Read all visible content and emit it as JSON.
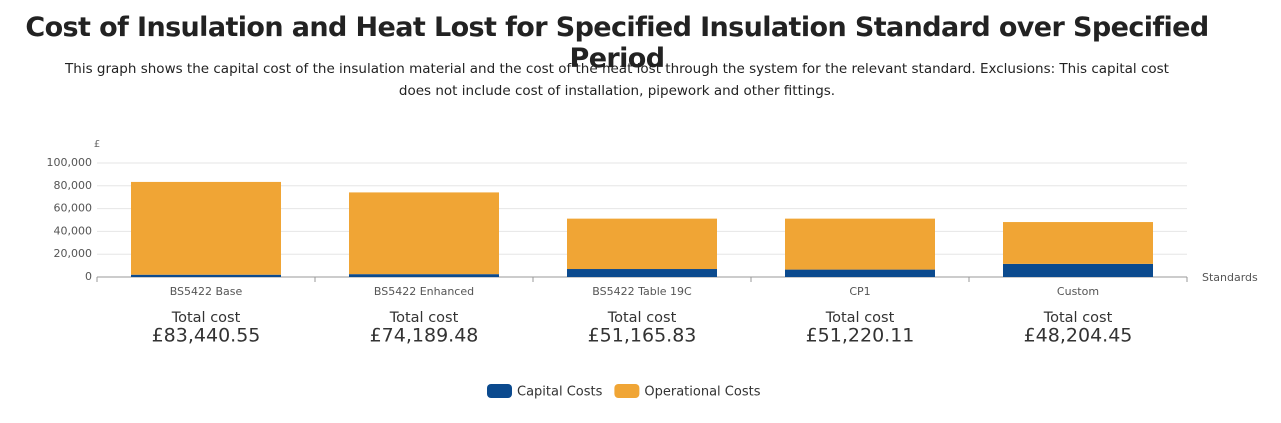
{
  "chart_data": {
    "type": "stacked_bar",
    "title": "Cost of Insulation and Heat Lost for Specified Insulation Standard over Specified Period",
    "subtitle": "This graph shows the capital cost of the insulation material and the cost of the heat lost through the system for the relevant standard. Exclusions: This capital cost does not include cost of installation, pipework and other fittings.",
    "y_label": "£",
    "x_label": "Standards",
    "categories": [
      "BS5422 Base",
      "BS5422 Enhanced",
      "BS5422 Table 19C",
      "CP1",
      "Custom"
    ],
    "series": [
      {
        "name": "Capital Costs",
        "color": "#0b4a8e",
        "values": [
          2000,
          2500,
          7000,
          6500,
          11500
        ]
      },
      {
        "name": "Operational Costs",
        "color": "#f0a535",
        "values": [
          81400,
          71700,
          44200,
          44700,
          36700
        ]
      }
    ],
    "total_title": "Total cost",
    "totals": [
      "£83,440.55",
      "£74,189.48",
      "£51,165.83",
      "£51,220.11",
      "£48,204.45"
    ],
    "ylim": [
      0,
      100000
    ],
    "yticks": [
      0,
      {
        "value": 20000,
        "label": "20,000"
      },
      {
        "value": 40000,
        "label": "40,000"
      },
      {
        "value": 60000,
        "label": "60,000"
      },
      {
        "value": 80000,
        "label": "80,000"
      },
      {
        "value": 100000,
        "label": "100,000"
      }
    ],
    "grid": true,
    "legend": "bottom"
  }
}
